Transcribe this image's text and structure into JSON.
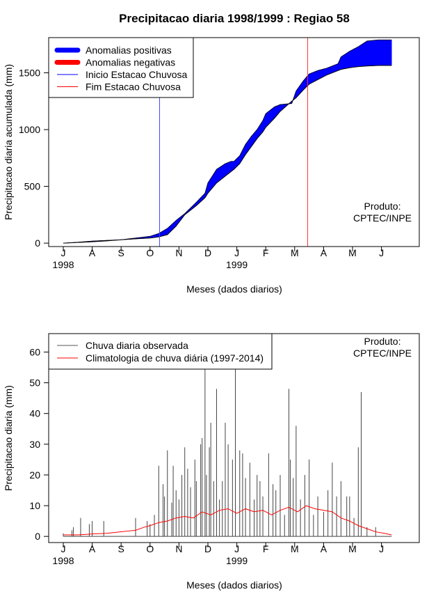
{
  "chart_data": [
    {
      "type": "area",
      "title": "Precipitacao diaria 1998/1999 : Regiao 58",
      "xlabel": "Meses (dados diarios)",
      "ylabel": "Precipitacao diaria acumulada (mm)",
      "ylim": [
        -30,
        1810
      ],
      "yticks": [
        0,
        500,
        1000,
        1500
      ],
      "month_ticks": [
        "J",
        "A",
        "S",
        "O",
        "N",
        "D",
        "J",
        "F",
        "M",
        "A",
        "M",
        "J"
      ],
      "year_labels": [
        {
          "month_index": 0,
          "label": "1998"
        },
        {
          "month_index": 6,
          "label": "1999"
        }
      ],
      "note": [
        "Produto:",
        "CPTEC/INPE"
      ],
      "legend": [
        {
          "label": "Anomalias positivas",
          "color": "#0000ff",
          "kind": "thick"
        },
        {
          "label": "Anomalias negativas",
          "color": "#ff0000",
          "kind": "thick"
        },
        {
          "label": "Inicio Estacao Chuvosa",
          "color": "#0000ff",
          "kind": "thin"
        },
        {
          "label": "Fim Estacao Chuvosa",
          "color": "#ff0000",
          "kind": "thin"
        }
      ],
      "start_rainy_season_month": 3.33,
      "end_rainy_season_month": 8.45,
      "colors": {
        "positive": "#0000ff",
        "negative": "#ff0000"
      },
      "series": [
        {
          "name": "Observada acumulada",
          "month": [
            0,
            0.5,
            1,
            1.5,
            2,
            2.5,
            3,
            3.3,
            3.6,
            3.9,
            4.2,
            4.6,
            4.9,
            5.0,
            5.3,
            5.6,
            5.8,
            5.9,
            6.1,
            6.3,
            6.5,
            6.7,
            6.9,
            7.0,
            7.3,
            7.5,
            7.9,
            8.05,
            8.3,
            8.5,
            8.8,
            9.1,
            9.3,
            9.5,
            9.6,
            9.9,
            10.2,
            10.5,
            10.9,
            11.35
          ],
          "value": [
            0,
            8,
            18,
            24,
            30,
            45,
            60,
            85,
            130,
            200,
            260,
            360,
            440,
            530,
            650,
            700,
            720,
            720,
            770,
            870,
            940,
            1000,
            1080,
            1140,
            1200,
            1220,
            1230,
            1340,
            1430,
            1490,
            1520,
            1540,
            1560,
            1580,
            1640,
            1690,
            1730,
            1780,
            1790,
            1790
          ]
        },
        {
          "name": "Climatologia acumulada",
          "month": [
            0,
            0.5,
            1,
            1.5,
            2,
            2.5,
            3,
            3.3,
            3.6,
            3.9,
            4.2,
            4.6,
            4.9,
            5.0,
            5.3,
            5.6,
            5.8,
            5.9,
            6.1,
            6.3,
            6.5,
            6.7,
            6.9,
            7.0,
            7.3,
            7.5,
            7.9,
            8.05,
            8.3,
            8.5,
            8.8,
            9.1,
            9.3,
            9.5,
            9.6,
            9.9,
            10.2,
            10.5,
            10.9,
            11.35
          ],
          "value": [
            0,
            6,
            12,
            20,
            30,
            38,
            45,
            55,
            75,
            150,
            250,
            330,
            400,
            440,
            530,
            590,
            630,
            650,
            700,
            780,
            850,
            920,
            980,
            1020,
            1100,
            1160,
            1250,
            1280,
            1350,
            1400,
            1440,
            1480,
            1500,
            1520,
            1530,
            1545,
            1555,
            1560,
            1565,
            1565
          ]
        }
      ]
    },
    {
      "type": "bar",
      "title": "",
      "xlabel": "Meses (dados diarios)",
      "ylabel": "Precipitacao diaria (mm)",
      "ylim": [
        -2,
        66
      ],
      "yticks": [
        0,
        10,
        20,
        30,
        40,
        50,
        60
      ],
      "month_ticks": [
        "J",
        "A",
        "S",
        "O",
        "N",
        "D",
        "J",
        "F",
        "M",
        "A",
        "M",
        "J"
      ],
      "year_labels": [
        {
          "month_index": 0,
          "label": "1998"
        },
        {
          "month_index": 6,
          "label": "1999"
        }
      ],
      "note": [
        "Produto:",
        "CPTEC/INPE"
      ],
      "legend": [
        {
          "label": "Chuva diaria observada",
          "color": "#555555",
          "kind": "thin"
        },
        {
          "label": "Climatologia de chuva diária (1997-2014)",
          "color": "#ff0000",
          "kind": "thin"
        }
      ],
      "daily_observed": {
        "month": [
          0.0,
          0.3,
          0.35,
          0.6,
          0.9,
          1.0,
          1.4,
          2.5,
          2.9,
          3.0,
          3.15,
          3.3,
          3.45,
          3.5,
          3.6,
          3.75,
          3.8,
          3.9,
          4.0,
          4.1,
          4.2,
          4.3,
          4.4,
          4.55,
          4.6,
          4.75,
          4.8,
          4.9,
          4.95,
          5.05,
          5.1,
          5.2,
          5.3,
          5.4,
          5.5,
          5.6,
          5.7,
          5.85,
          5.95,
          6.1,
          6.2,
          6.3,
          6.45,
          6.6,
          6.7,
          6.8,
          6.9,
          7.1,
          7.25,
          7.35,
          7.5,
          7.65,
          7.8,
          7.85,
          7.95,
          8.05,
          8.2,
          8.35,
          8.5,
          8.65,
          8.8,
          9.0,
          9.15,
          9.3,
          9.45,
          9.6,
          9.8,
          9.9,
          10.05,
          10.2,
          10.3,
          10.5,
          10.8
        ],
        "value": [
          1,
          2,
          3,
          6,
          4,
          5,
          5,
          6,
          5,
          4,
          7,
          23,
          17,
          13,
          28,
          11,
          23,
          15,
          12,
          20,
          29,
          22,
          16,
          25,
          18,
          30,
          32,
          55,
          20,
          29,
          37,
          18,
          48,
          12,
          18,
          37,
          30,
          25,
          55,
          28,
          27,
          19,
          24,
          12,
          20,
          18,
          13,
          27,
          17,
          15,
          20,
          7,
          48,
          25,
          19,
          36,
          12,
          20,
          25,
          7,
          13,
          8,
          15,
          24,
          13,
          18,
          13,
          13,
          6,
          29,
          47,
          3,
          3
        ]
      },
      "climatology": {
        "month": [
          0,
          0.5,
          1,
          1.5,
          2,
          2.5,
          2.8,
          3.0,
          3.3,
          3.6,
          3.9,
          4.2,
          4.5,
          4.8,
          5.1,
          5.4,
          5.7,
          6.0,
          6.3,
          6.6,
          6.9,
          7.2,
          7.5,
          7.8,
          8.1,
          8.4,
          8.7,
          9.0,
          9.3,
          9.6,
          9.9,
          10.2,
          10.5,
          10.8,
          11.1,
          11.35
        ],
        "value": [
          0.5,
          0.5,
          0.8,
          1.0,
          1.5,
          2.0,
          3.0,
          3.5,
          4.5,
          5.0,
          6.0,
          6.5,
          6.0,
          8.0,
          7.0,
          8.5,
          9.0,
          7.5,
          9.0,
          8.0,
          8.5,
          7.0,
          8.5,
          9.5,
          8.0,
          10.0,
          9.0,
          8.5,
          8.0,
          6.0,
          5.0,
          3.5,
          2.5,
          1.5,
          1.0,
          0.5
        ]
      }
    }
  ]
}
